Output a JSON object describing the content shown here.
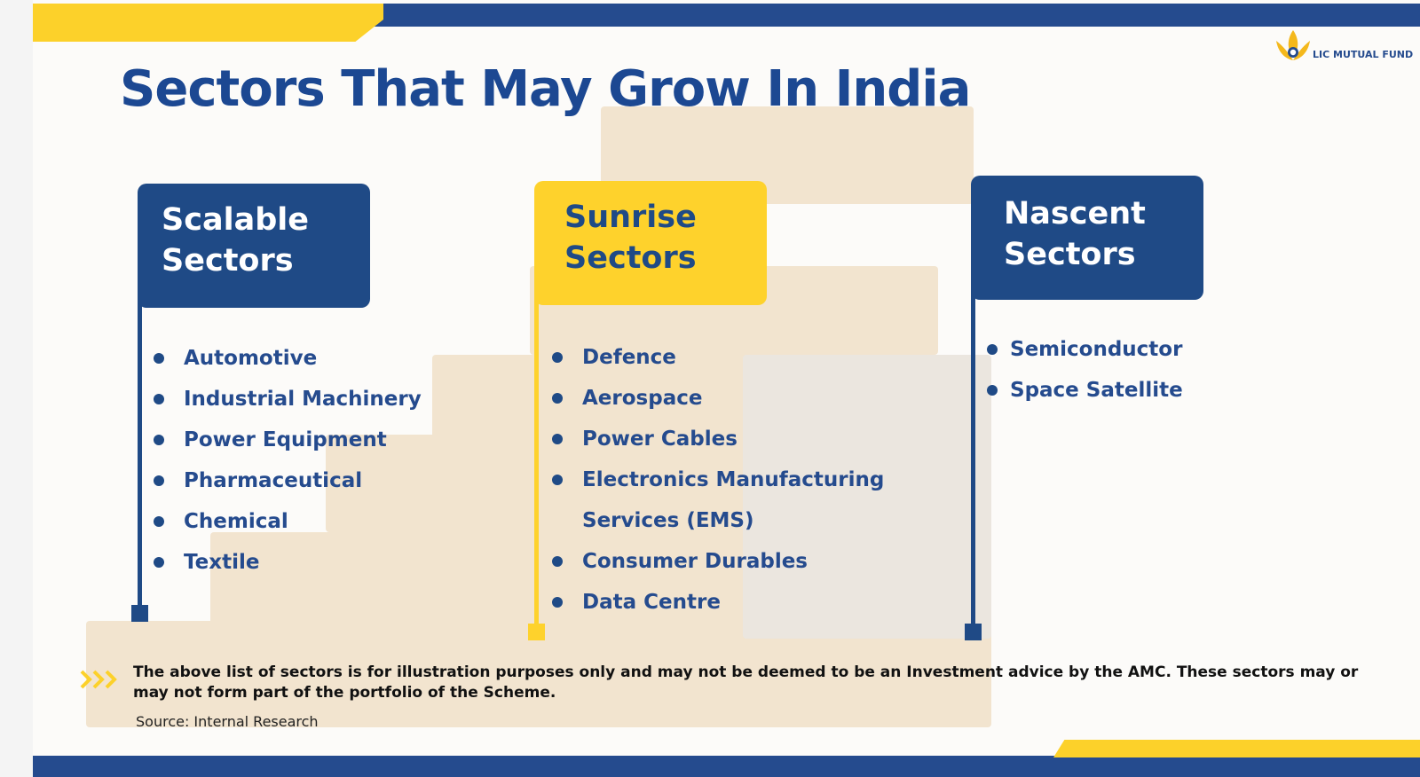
{
  "brand": {
    "logo_text": "LIC MUTUAL FUND",
    "primary_color": "#1f4a86",
    "accent_color": "#fed22c"
  },
  "title": "Sectors That May Grow In India",
  "columns": [
    {
      "header_lines": [
        "Scalable",
        "Sectors"
      ],
      "style": "blue",
      "items": [
        "Automotive",
        "Industrial Machinery",
        "Power Equipment",
        "Pharmaceutical",
        "Chemical",
        "Textile"
      ]
    },
    {
      "header_lines": [
        "Sunrise",
        "Sectors"
      ],
      "style": "yellow",
      "items": [
        "Defence",
        "Aerospace",
        "Power Cables",
        "Electronics Manufacturing",
        "Services (EMS)",
        "Consumer Durables",
        "Data Centre"
      ]
    },
    {
      "header_lines": [
        "Nascent",
        "Sectors"
      ],
      "style": "blue",
      "items": [
        "Semiconductor",
        "Space Satellite"
      ]
    }
  ],
  "disclaimer": "The above list of sectors is for illustration purposes only and may not be deemed to be an Investment advice by the AMC. These sectors may or may not form part of the portfolio of the Scheme.",
  "source": "Source: Internal Research"
}
